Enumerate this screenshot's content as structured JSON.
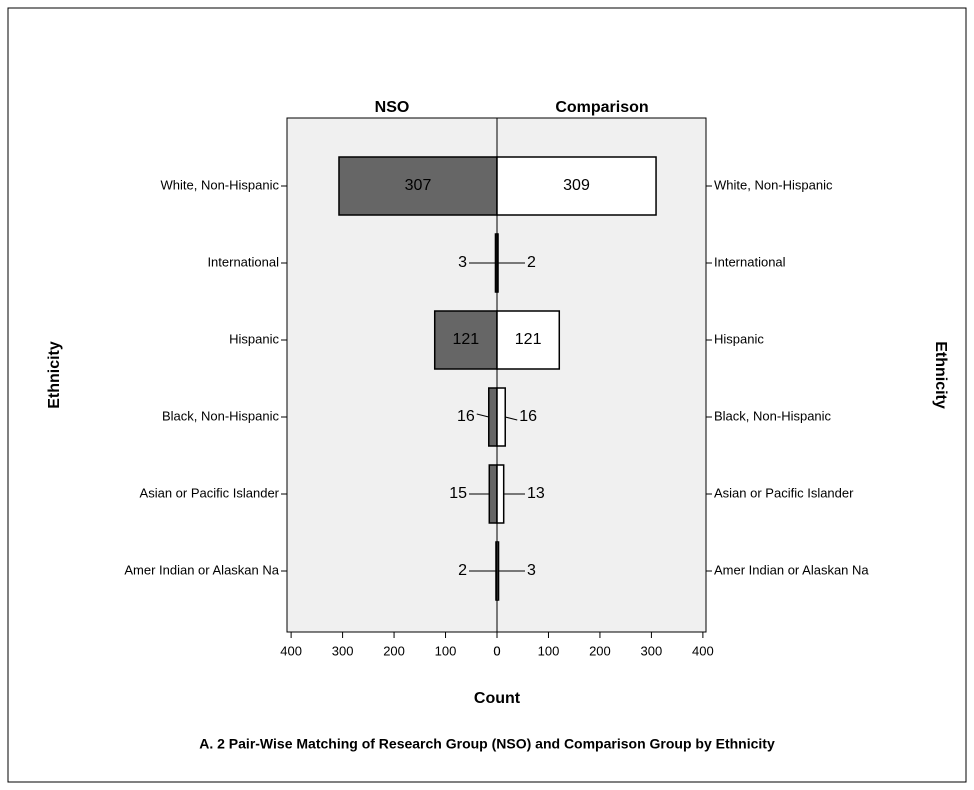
{
  "chart_data": {
    "type": "pyramid",
    "title": "A. 2  Pair-Wise Matching of Research Group (NSO) and Comparison Group by Ethnicity",
    "x_label": "Count",
    "y_label": "Ethnicity",
    "categories": [
      "White, Non-Hispanic",
      "International",
      "Hispanic",
      "Black, Non-Hispanic",
      "Asian or Pacific Islander",
      "Amer Indian or Alaskan Na"
    ],
    "series": [
      {
        "name": "NSO",
        "color": "#666666",
        "values": [
          307,
          3,
          121,
          16,
          15,
          2
        ]
      },
      {
        "name": "Comparison",
        "color": "#ffffff",
        "values": [
          309,
          2,
          121,
          16,
          13,
          3
        ]
      }
    ],
    "xlim": [
      0,
      408
    ],
    "xticks": [
      0,
      100,
      200,
      300,
      400
    ]
  }
}
